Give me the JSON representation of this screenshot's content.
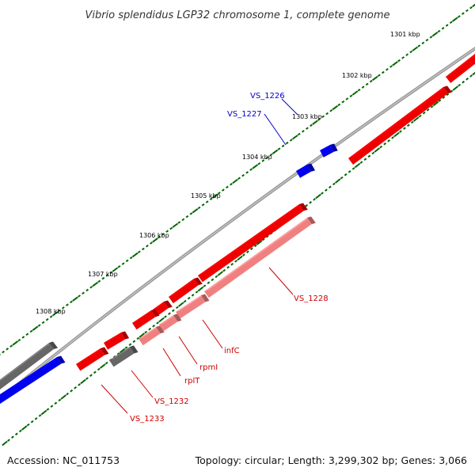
{
  "title": "Vibrio splendidus LGP32 chromosome 1, complete genome",
  "footer": {
    "accession": "Accession: NC_011753",
    "stats": "Topology: circular; Length: 3,299,302 bp; Genes: 3,066"
  },
  "colors": {
    "forward_gene": "#ee0000",
    "reverse_gene": "#0000ee",
    "pale_gene": "#f08080",
    "other_gene": "#666666",
    "backbone": "#888888",
    "ticks": "#006600",
    "label_red": "#cc0000",
    "label_blue": "#0000cc"
  },
  "scale_labels": [
    "1301 kbp",
    "1302 kbp",
    "1303 kbp",
    "1304 kbp",
    "1305 kbp",
    "1306 kbp",
    "1307 kbp",
    "1308 kbp"
  ],
  "gene_labels": [
    {
      "text": "VS_1226",
      "strand": "reverse"
    },
    {
      "text": "VS_1227",
      "strand": "reverse"
    },
    {
      "text": "VS_1228",
      "strand": "forward"
    },
    {
      "text": "infC",
      "strand": "forward"
    },
    {
      "text": "rpmI",
      "strand": "forward"
    },
    {
      "text": "rplT",
      "strand": "forward"
    },
    {
      "text": "VS_1232",
      "strand": "forward"
    },
    {
      "text": "VS_1233",
      "strand": "forward"
    }
  ]
}
